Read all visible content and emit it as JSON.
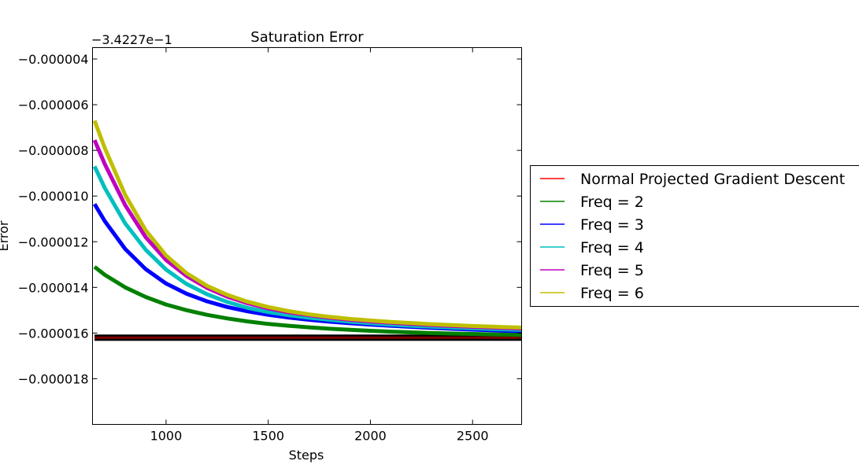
{
  "chart_data": {
    "type": "line",
    "title": "Saturation Error",
    "xlabel": "Steps",
    "ylabel": "Error",
    "offset_label": "−3.4227e−1",
    "xlim": [
      640,
      2740
    ],
    "ylim": [
      -2e-05,
      -3.5e-06
    ],
    "x_ticks": [
      1000,
      1500,
      2000,
      2500
    ],
    "x_tick_labels": [
      "1000",
      "1500",
      "2000",
      "2500"
    ],
    "y_ticks": [
      -4e-06,
      -6e-06,
      -8e-06,
      -1e-05,
      -1.2e-05,
      -1.4e-05,
      -1.6e-05,
      -1.8e-05
    ],
    "y_tick_labels": [
      "−0.000004",
      "−0.000006",
      "−0.000008",
      "−0.000010",
      "−0.000012",
      "−0.000014",
      "−0.000016",
      "−0.000018"
    ],
    "grid": false,
    "legend_position": "right",
    "x": [
      650,
      700,
      800,
      900,
      1000,
      1100,
      1200,
      1300,
      1400,
      1500,
      1600,
      1700,
      1800,
      1900,
      2000,
      2100,
      2200,
      2300,
      2400,
      2500,
      2600,
      2700,
      2740
    ],
    "series": [
      {
        "name": "Normal Projected Gradient Descent",
        "color": "#ff0000",
        "values": [
          -1.62e-05,
          -1.62e-05,
          -1.62e-05,
          -1.62e-05,
          -1.62e-05,
          -1.62e-05,
          -1.62e-05,
          -1.62e-05,
          -1.62e-05,
          -1.62e-05,
          -1.62e-05,
          -1.62e-05,
          -1.62e-05,
          -1.62e-05,
          -1.62e-05,
          -1.62e-05,
          -1.62e-05,
          -1.62e-05,
          -1.62e-05,
          -1.62e-05,
          -1.62e-05,
          -1.62e-05,
          -1.62e-05
        ]
      },
      {
        "name": "Freq = 2",
        "color": "#008000",
        "values": [
          -1.31e-05,
          -1.345e-05,
          -1.4e-05,
          -1.442e-05,
          -1.475e-05,
          -1.5e-05,
          -1.52e-05,
          -1.536e-05,
          -1.549e-05,
          -1.56e-05,
          -1.568e-05,
          -1.575e-05,
          -1.581e-05,
          -1.586e-05,
          -1.59e-05,
          -1.594e-05,
          -1.597e-05,
          -1.6e-05,
          -1.602e-05,
          -1.604e-05,
          -1.606e-05,
          -1.607e-05,
          -1.608e-05
        ]
      },
      {
        "name": "Freq = 3",
        "color": "#0000ff",
        "values": [
          -1.035e-05,
          -1.11e-05,
          -1.232e-05,
          -1.32e-05,
          -1.383e-05,
          -1.428e-05,
          -1.461e-05,
          -1.486e-05,
          -1.505e-05,
          -1.52e-05,
          -1.532e-05,
          -1.542e-05,
          -1.55e-05,
          -1.557e-05,
          -1.563e-05,
          -1.568e-05,
          -1.573e-05,
          -1.577e-05,
          -1.581e-05,
          -1.585e-05,
          -1.588e-05,
          -1.591e-05,
          -1.592e-05
        ]
      },
      {
        "name": "Freq = 4",
        "color": "#00bfbf",
        "values": [
          -8.7e-06,
          -9.65e-06,
          -1.12e-05,
          -1.235e-05,
          -1.322e-05,
          -1.385e-05,
          -1.43e-05,
          -1.464e-05,
          -1.49e-05,
          -1.508e-05,
          -1.522e-05,
          -1.533e-05,
          -1.542e-05,
          -1.55e-05,
          -1.557e-05,
          -1.563e-05,
          -1.568e-05,
          -1.572e-05,
          -1.576e-05,
          -1.579e-05,
          -1.582e-05,
          -1.585e-05,
          -1.586e-05
        ]
      },
      {
        "name": "Freq = 5",
        "color": "#bf00bf",
        "values": [
          -7.55e-06,
          -8.6e-06,
          -1.04e-05,
          -1.18e-05,
          -1.28e-05,
          -1.35e-05,
          -1.402e-05,
          -1.441e-05,
          -1.47e-05,
          -1.492e-05,
          -1.509e-05,
          -1.522e-05,
          -1.533e-05,
          -1.542e-05,
          -1.549e-05,
          -1.555e-05,
          -1.56e-05,
          -1.565e-05,
          -1.569e-05,
          -1.573e-05,
          -1.576e-05,
          -1.579e-05,
          -1.58e-05
        ]
      },
      {
        "name": "Freq = 6",
        "color": "#bfbf00",
        "values": [
          -6.7e-06,
          -7.9e-06,
          -9.95e-06,
          -1.15e-05,
          -1.26e-05,
          -1.338e-05,
          -1.393e-05,
          -1.433e-05,
          -1.463e-05,
          -1.486e-05,
          -1.504e-05,
          -1.518e-05,
          -1.529e-05,
          -1.538e-05,
          -1.545e-05,
          -1.551e-05,
          -1.556e-05,
          -1.561e-05,
          -1.565e-05,
          -1.569e-05,
          -1.572e-05,
          -1.575e-05,
          -1.576e-05
        ]
      }
    ]
  }
}
